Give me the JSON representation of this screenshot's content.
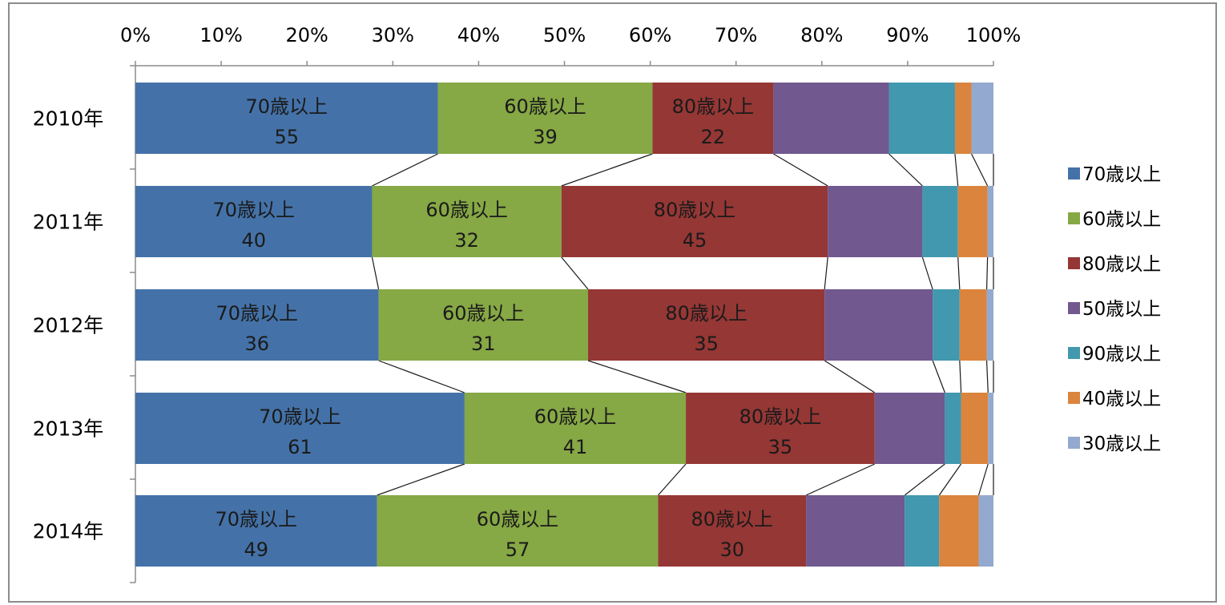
{
  "chart_data": {
    "type": "bar",
    "orientation": "horizontal",
    "stacked": "percent",
    "categories": [
      "2010年",
      "2011年",
      "2012年",
      "2013年",
      "2014年"
    ],
    "x_ticks": [
      "0%",
      "10%",
      "20%",
      "30%",
      "40%",
      "50%",
      "60%",
      "70%",
      "80%",
      "90%",
      "100%"
    ],
    "xlim": [
      0,
      100
    ],
    "x_axis_position": "top",
    "series_lines": true,
    "legend_position": "right",
    "series": [
      {
        "name": "70歳以上",
        "color": "#4472A8",
        "values": [
          55,
          40,
          36,
          61,
          49
        ]
      },
      {
        "name": "60歳以上",
        "color": "#86A845",
        "values": [
          39,
          32,
          31,
          41,
          57
        ]
      },
      {
        "name": "80歳以上",
        "color": "#953735",
        "values": [
          22,
          45,
          35,
          35,
          30
        ]
      },
      {
        "name": "50歳以上",
        "color": "#71588F",
        "values": [
          21,
          16,
          16,
          13,
          20
        ]
      },
      {
        "name": "90歳以上",
        "color": "#4198AF",
        "values": [
          12,
          6,
          4,
          3,
          7
        ]
      },
      {
        "name": "40歳以上",
        "color": "#DB843D",
        "values": [
          3,
          5,
          4,
          5,
          8
        ]
      },
      {
        "name": "30歳以上",
        "color": "#93A9CF",
        "values": [
          4,
          1,
          1,
          1,
          3
        ]
      }
    ],
    "segment_labels": [
      {
        "series": 0,
        "name": "70歳以上",
        "values": [
          "55",
          "40",
          "36",
          "61",
          "49"
        ]
      },
      {
        "series": 1,
        "name": "60歳以上",
        "values": [
          "39",
          "32",
          "31",
          "41",
          "57"
        ]
      },
      {
        "series": 2,
        "name": "80歳以上",
        "values": [
          "22",
          "45",
          "35",
          "35",
          "30"
        ]
      }
    ]
  }
}
